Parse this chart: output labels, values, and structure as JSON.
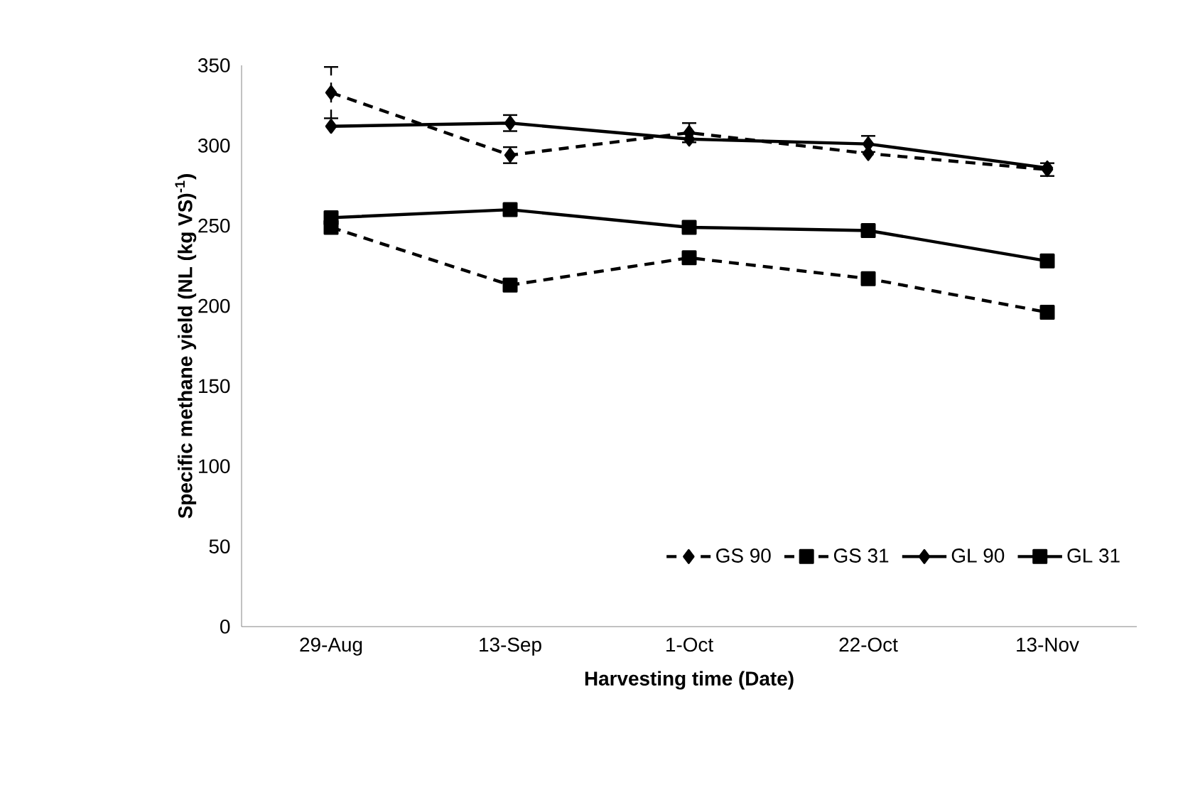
{
  "chart_data": {
    "type": "line",
    "xlabel": "Harvesting time (Date)",
    "ylabel": "Specific methane yield (NL (kg VS)$^{-1}$)",
    "categories": [
      "29-Aug",
      "13-Sep",
      "1-Oct",
      "22-Oct",
      "13-Nov"
    ],
    "series": [
      {
        "name": "GS 90",
        "color": "#000000",
        "marker": "diamond",
        "line_style": "dashed",
        "values": [
          333,
          294,
          308,
          295,
          285
        ],
        "errors": [
          16,
          5,
          6,
          null,
          4
        ]
      },
      {
        "name": "GS 31",
        "color": "#000000",
        "marker": "square",
        "line_style": "dashed",
        "values": [
          249,
          213,
          230,
          217,
          196
        ]
      },
      {
        "name": "GL 90",
        "color": "#000000",
        "marker": "diamond",
        "line_style": "solid",
        "values": [
          312,
          314,
          304,
          301,
          286
        ],
        "errors": [
          null,
          5,
          null,
          5,
          null
        ]
      },
      {
        "name": "GL 31",
        "color": "#000000",
        "marker": "square",
        "line_style": "solid",
        "values": [
          255,
          260,
          249,
          247,
          228
        ]
      }
    ],
    "ylim": [
      0,
      350
    ],
    "yticks": [
      0,
      50,
      100,
      150,
      200,
      250,
      300,
      350
    ],
    "grid": false,
    "legend": "bottom right"
  }
}
